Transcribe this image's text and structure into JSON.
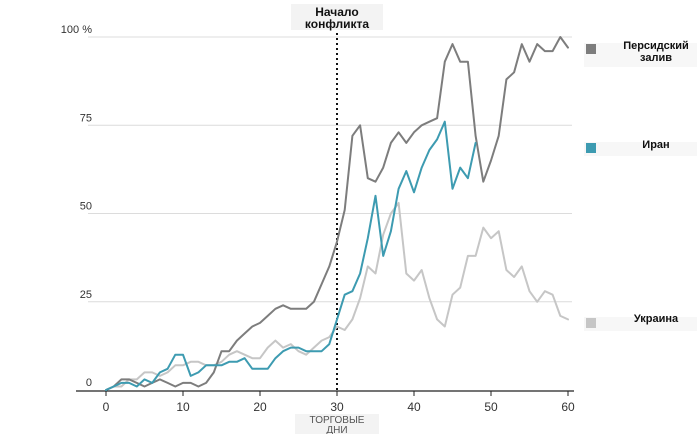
{
  "chart_data": {
    "type": "line",
    "annotation": {
      "line1": "Начало",
      "line2": "конфликта",
      "x": 30
    },
    "xlabel_line1": "ТОРГОВЫЕ",
    "xlabel_line2": "ДНИ",
    "x_ticks": [
      "0",
      "10",
      "20",
      "30",
      "40",
      "50",
      "60"
    ],
    "y_ticks": [
      "0",
      "25",
      "50",
      "75",
      "100 %"
    ],
    "xlim": [
      0,
      60
    ],
    "ylim": [
      0,
      100
    ],
    "grid": "horizontal",
    "legend": "right, at series end",
    "series": [
      {
        "name": "Персидский залив",
        "label_line1": "Персидский",
        "label_line2": "залив",
        "color": "#7d7d7d",
        "x": [
          0,
          1,
          2,
          3,
          4,
          5,
          6,
          7,
          8,
          9,
          10,
          11,
          12,
          13,
          14,
          15,
          16,
          17,
          18,
          19,
          20,
          21,
          22,
          23,
          24,
          25,
          26,
          27,
          28,
          29,
          30,
          31,
          32,
          33,
          34,
          35,
          36,
          37,
          38,
          39,
          40,
          41,
          42,
          43,
          44,
          45,
          46,
          47,
          48,
          49,
          50,
          51,
          52,
          53,
          54,
          55,
          56,
          57,
          58,
          59,
          60
        ],
        "values": [
          0,
          1,
          3,
          3,
          2,
          1,
          2,
          3,
          2,
          1,
          2,
          2,
          1,
          2,
          5,
          11,
          11,
          14,
          16,
          18,
          19,
          21,
          23,
          24,
          23,
          23,
          23,
          25,
          30,
          35,
          42,
          51,
          72,
          75,
          60,
          59,
          63,
          70,
          73,
          70,
          73,
          75,
          76,
          77,
          93,
          98,
          93,
          93,
          72,
          59,
          65,
          72,
          88,
          90,
          98,
          93,
          98,
          96,
          96,
          100,
          97
        ]
      },
      {
        "name": "Иран",
        "label_line1": "Иран",
        "label_line2": "",
        "color": "#3d9bb1",
        "x": [
          0,
          1,
          2,
          3,
          4,
          5,
          6,
          7,
          8,
          9,
          10,
          11,
          12,
          13,
          14,
          15,
          16,
          17,
          18,
          19,
          20,
          21,
          22,
          23,
          24,
          25,
          26,
          27,
          28,
          29,
          30,
          31,
          32,
          33,
          34,
          35,
          36,
          37,
          38,
          39,
          40,
          41,
          42,
          43,
          44,
          45,
          46,
          47,
          48
        ],
        "values": [
          0,
          1,
          2,
          2,
          1,
          3,
          2,
          5,
          6,
          10,
          10,
          4,
          5,
          7,
          7,
          7,
          8,
          8,
          9,
          6,
          6,
          6,
          9,
          11,
          12,
          12,
          11,
          11,
          11,
          13,
          20,
          27,
          28,
          33,
          43,
          55,
          38,
          45,
          57,
          62,
          56,
          63,
          68,
          71,
          76,
          57,
          63,
          60,
          70
        ]
      },
      {
        "name": "Украина",
        "label_line1": "Украина",
        "label_line2": "",
        "color": "#c6c6c6",
        "x": [
          0,
          1,
          2,
          3,
          4,
          5,
          6,
          7,
          8,
          9,
          10,
          11,
          12,
          13,
          14,
          15,
          16,
          17,
          18,
          19,
          20,
          21,
          22,
          23,
          24,
          25,
          26,
          27,
          28,
          29,
          30,
          31,
          32,
          33,
          34,
          35,
          36,
          37,
          38,
          39,
          40,
          41,
          42,
          43,
          44,
          45,
          46,
          47,
          48,
          49,
          50,
          51,
          52,
          53,
          54,
          55,
          56,
          57,
          58,
          59,
          60
        ],
        "values": [
          0,
          1,
          1,
          3,
          3,
          5,
          5,
          4,
          5,
          7,
          7,
          8,
          8,
          7,
          7,
          8,
          10,
          11,
          10,
          9,
          9,
          12,
          14,
          12,
          13,
          11,
          10,
          12,
          14,
          15,
          18,
          17,
          20,
          26,
          35,
          33,
          44,
          50,
          53,
          33,
          31,
          34,
          26,
          20,
          18,
          27,
          29,
          38,
          38,
          46,
          43,
          45,
          34,
          32,
          35,
          28,
          25,
          28,
          27,
          21,
          20
        ]
      }
    ]
  }
}
